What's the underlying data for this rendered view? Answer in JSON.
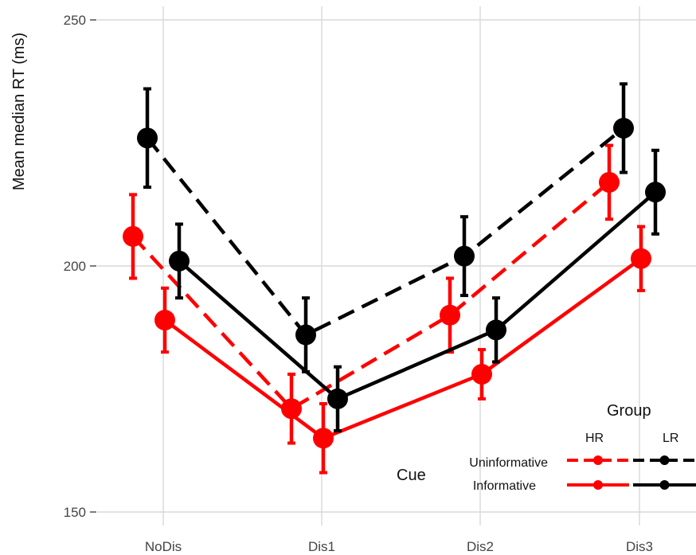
{
  "chart_data": {
    "type": "line",
    "xlabel": "",
    "ylabel": "Mean median RT (ms)",
    "categories": [
      "NoDis",
      "Dis1",
      "Dis2",
      "Dis3"
    ],
    "ylim": [
      150,
      250
    ],
    "yticks": [
      150,
      200,
      250
    ],
    "grid": true,
    "error_bars": true,
    "series": [
      {
        "group": "HR",
        "cue": "Uninformative",
        "color": "#ff0000",
        "dash": true,
        "values": [
          206,
          171,
          190,
          217
        ],
        "err": [
          8.5,
          7,
          7.5,
          7.5
        ]
      },
      {
        "group": "HR",
        "cue": "Informative",
        "color": "#ff0000",
        "dash": false,
        "values": [
          189,
          165,
          178,
          201.5
        ],
        "err": [
          6.5,
          7,
          5,
          6.5
        ]
      },
      {
        "group": "LR",
        "cue": "Uninformative",
        "color": "#000000",
        "dash": true,
        "values": [
          226,
          186,
          202,
          228
        ],
        "err": [
          10,
          7.5,
          8,
          9
        ]
      },
      {
        "group": "LR",
        "cue": "Informative",
        "color": "#000000",
        "dash": false,
        "values": [
          201,
          173,
          187,
          215
        ],
        "err": [
          7.5,
          6.5,
          6.5,
          8.5
        ]
      }
    ],
    "legend": {
      "placement": "bottom-right",
      "group_title": "Group",
      "cue_title": "Cue",
      "group_labels": [
        "HR",
        "LR"
      ],
      "cue_labels": [
        "Uninformative",
        "Informative"
      ]
    }
  }
}
